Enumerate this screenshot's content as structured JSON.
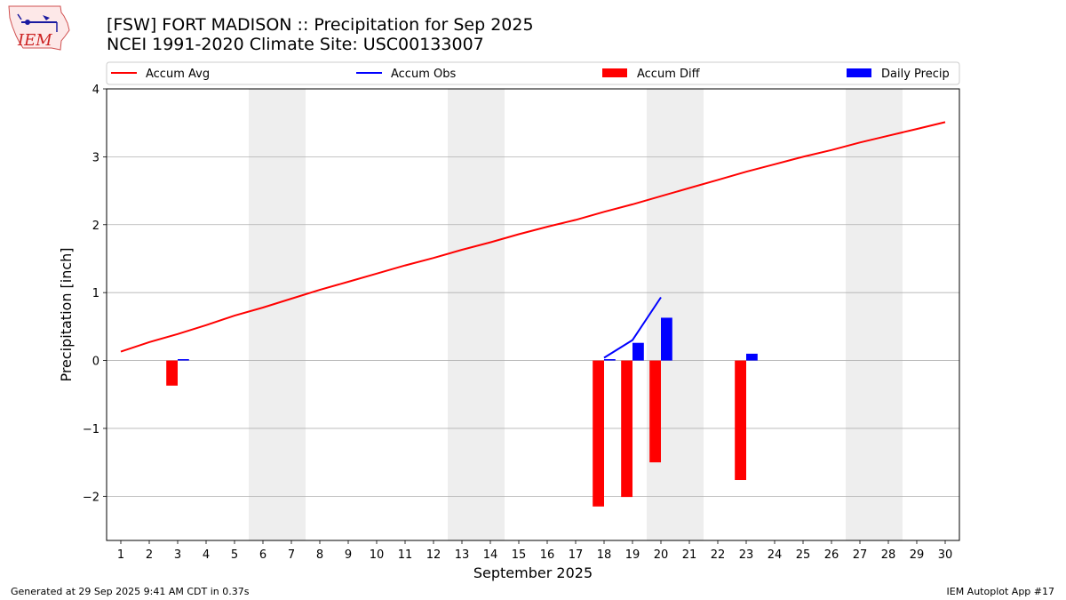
{
  "header": {
    "title_line1": "[FSW] FORT MADISON :: Precipitation for Sep 2025",
    "title_line2": "NCEI 1991-2020 Climate Site: USC00133007",
    "logo_text": "IEM"
  },
  "footer": {
    "left": "Generated at 29 Sep 2025 9:41 AM CDT in 0.37s",
    "right": "IEM Autoplot App #17"
  },
  "colors": {
    "accum_avg": "#ff0000",
    "accum_obs": "#0000ff",
    "accum_diff": "#ff0000",
    "daily_precip": "#0000ff",
    "weekend_shade": "#eeeeee",
    "grid": "#b0b0b0"
  },
  "chart_data": {
    "type": "bar",
    "xlabel": "September 2025",
    "ylabel": "Precipitation [inch]",
    "xlim": [
      0.5,
      30.5
    ],
    "ylim": [
      -2.65,
      4.0
    ],
    "yticks": [
      -2,
      -1,
      0,
      1,
      2,
      3,
      4
    ],
    "ytick_labels": [
      "−2",
      "−1",
      "0",
      "1",
      "2",
      "3",
      "4"
    ],
    "xticks": [
      1,
      2,
      3,
      4,
      5,
      6,
      7,
      8,
      9,
      10,
      11,
      12,
      13,
      14,
      15,
      16,
      17,
      18,
      19,
      20,
      21,
      22,
      23,
      24,
      25,
      26,
      27,
      28,
      29,
      30
    ],
    "grid": "horizontal",
    "legend_position": "top",
    "weekend_shading": [
      [
        6,
        7
      ],
      [
        13,
        14
      ],
      [
        20,
        21
      ],
      [
        27,
        28
      ]
    ],
    "legend": [
      "Accum Avg",
      "Accum Obs",
      "Accum Diff",
      "Daily Precip"
    ],
    "series": [
      {
        "name": "Accum Avg",
        "type": "line",
        "x": [
          1,
          2,
          3,
          4,
          5,
          6,
          7,
          8,
          9,
          10,
          11,
          12,
          13,
          14,
          15,
          16,
          17,
          18,
          19,
          20,
          21,
          22,
          23,
          24,
          25,
          26,
          27,
          28,
          29,
          30
        ],
        "values": [
          0.13,
          0.27,
          0.39,
          0.52,
          0.66,
          0.78,
          0.91,
          1.04,
          1.16,
          1.28,
          1.4,
          1.51,
          1.63,
          1.74,
          1.86,
          1.97,
          2.07,
          2.19,
          2.3,
          2.42,
          2.54,
          2.66,
          2.78,
          2.89,
          3.0,
          3.1,
          3.21,
          3.31,
          3.41,
          3.51
        ]
      },
      {
        "name": "Accum Obs",
        "type": "line",
        "x": [
          18,
          19,
          20
        ],
        "values": [
          0.04,
          0.3,
          0.93
        ]
      },
      {
        "name": "Accum Diff",
        "type": "bar",
        "offset": -0.2,
        "x": [
          3,
          18,
          19,
          20,
          23
        ],
        "values": [
          -0.37,
          -2.15,
          -2.01,
          -1.5,
          -1.76
        ]
      },
      {
        "name": "Daily Precip",
        "type": "bar",
        "offset": 0.2,
        "x": [
          3,
          18,
          19,
          20,
          23
        ],
        "values": [
          0.02,
          0.02,
          0.26,
          0.63,
          0.1
        ]
      }
    ]
  }
}
